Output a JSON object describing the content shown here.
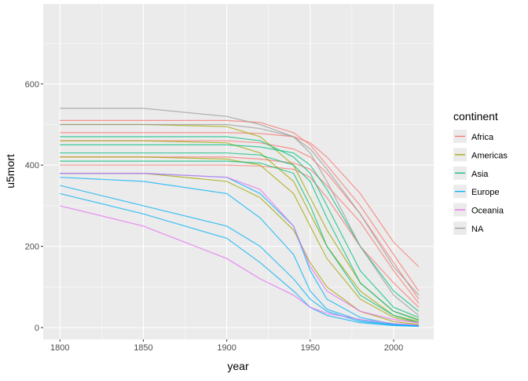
{
  "chart_data": {
    "type": "line",
    "title": "",
    "xlabel": "year",
    "ylabel": "u5mort",
    "xlim": [
      1790,
      2024
    ],
    "ylim": [
      -29,
      797
    ],
    "x_ticks": [
      1800,
      1850,
      1900,
      1950,
      2000
    ],
    "y_ticks": [
      0,
      200,
      400,
      600
    ],
    "grid": true,
    "legend": {
      "title": "continent",
      "placement": "right"
    },
    "x": [
      1800,
      1850,
      1900,
      1920,
      1940,
      1950,
      1960,
      1980,
      2000,
      2015
    ],
    "series": [
      {
        "name": "Africa",
        "color": "#F8766D",
        "lines": [
          [
            510,
            510,
            510,
            505,
            480,
            450,
            400,
            300,
            180,
            90
          ],
          [
            460,
            460,
            460,
            455,
            440,
            420,
            380,
            280,
            160,
            70
          ],
          [
            420,
            420,
            420,
            415,
            405,
            390,
            350,
            260,
            140,
            60
          ],
          [
            480,
            480,
            480,
            478,
            470,
            455,
            420,
            330,
            210,
            150
          ],
          [
            400,
            400,
            400,
            398,
            390,
            370,
            320,
            200,
            110,
            50
          ]
        ]
      },
      {
        "name": "Americas",
        "color": "#A3A500",
        "lines": [
          [
            460,
            460,
            455,
            430,
            360,
            280,
            200,
            90,
            30,
            15
          ],
          [
            420,
            420,
            415,
            400,
            330,
            250,
            170,
            70,
            25,
            12
          ],
          [
            500,
            500,
            495,
            470,
            400,
            320,
            240,
            110,
            40,
            20
          ],
          [
            380,
            380,
            360,
            320,
            240,
            160,
            100,
            40,
            15,
            8
          ]
        ]
      },
      {
        "name": "Asia",
        "color": "#00BF7D",
        "lines": [
          [
            470,
            470,
            470,
            460,
            420,
            380,
            300,
            140,
            50,
            25
          ],
          [
            430,
            430,
            430,
            425,
            400,
            360,
            270,
            110,
            40,
            18
          ],
          [
            410,
            410,
            410,
            405,
            380,
            300,
            200,
            80,
            30,
            12
          ],
          [
            450,
            450,
            450,
            445,
            430,
            400,
            340,
            200,
            90,
            40
          ]
        ]
      },
      {
        "name": "Europe",
        "color": "#00B0F6",
        "lines": [
          [
            350,
            300,
            250,
            200,
            120,
            70,
            40,
            15,
            6,
            4
          ],
          [
            370,
            360,
            330,
            270,
            180,
            90,
            45,
            18,
            7,
            4
          ],
          [
            330,
            280,
            220,
            160,
            90,
            50,
            30,
            12,
            5,
            3
          ],
          [
            380,
            380,
            370,
            330,
            250,
            140,
            70,
            25,
            8,
            5
          ]
        ]
      },
      {
        "name": "Oceania",
        "color": "#E76BF3",
        "lines": [
          [
            380,
            380,
            370,
            340,
            250,
            150,
            90,
            40,
            20,
            12
          ],
          [
            300,
            250,
            170,
            120,
            80,
            50,
            35,
            20,
            10,
            6
          ]
        ]
      },
      {
        "name": "NA",
        "color": "#999999",
        "lines": [
          [
            540,
            540,
            520,
            500,
            470,
            430,
            360,
            200,
            80,
            30
          ],
          [
            500,
            500,
            500,
            490,
            470,
            440,
            390,
            280,
            150,
            80
          ]
        ]
      }
    ]
  }
}
